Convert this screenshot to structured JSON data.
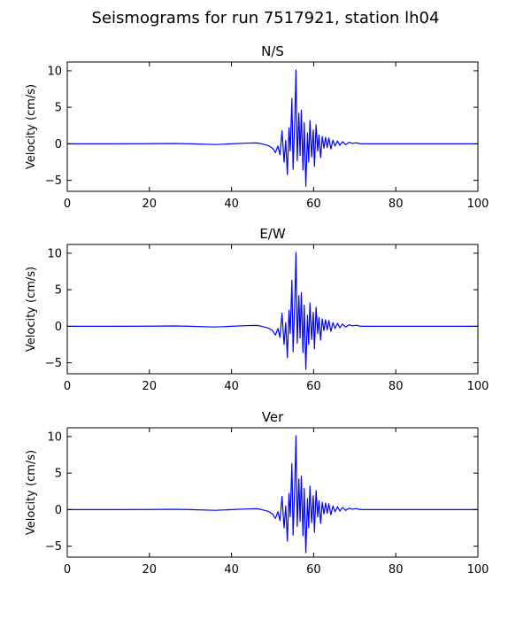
{
  "figure": {
    "title": "Seismograms for run 7517921, station lh04"
  },
  "colors": {
    "trace": "#0000ff",
    "axes": "#000000",
    "background": "#ffffff"
  },
  "chart_data": [
    {
      "type": "line",
      "title": "N/S",
      "xlabel": "",
      "ylabel": "Velocity (cm/s)",
      "xlim": [
        0,
        100
      ],
      "ylim": [
        -6.5,
        11.2
      ],
      "xticks": [
        0,
        20,
        40,
        60,
        80,
        100
      ],
      "yticks": [
        -5,
        0,
        5,
        10
      ],
      "grid": false,
      "series": [
        {
          "x": [
            0,
            10,
            20,
            26,
            30,
            36,
            40,
            44,
            46,
            47,
            48,
            49,
            50,
            50.7,
            51.3,
            51.8,
            52.3,
            52.8,
            53.2,
            53.6,
            54.0,
            54.3,
            54.7,
            55.0,
            55.4,
            55.7,
            56.0,
            56.4,
            56.7,
            57.0,
            57.4,
            57.7,
            58.1,
            58.5,
            58.8,
            59.1,
            59.5,
            59.9,
            60.2,
            60.6,
            61.0,
            61.3,
            61.7,
            62.1,
            62.5,
            62.9,
            63.3,
            63.7,
            64.2,
            64.7,
            65.2,
            65.8,
            66.4,
            67.0,
            67.8,
            68.6,
            69.5,
            70.3,
            71.2,
            72.0,
            74,
            78,
            85,
            95,
            100
          ],
          "y": [
            0,
            0,
            0.02,
            0.05,
            0,
            -0.1,
            0,
            0.1,
            0.12,
            0.05,
            -0.1,
            -0.25,
            -0.6,
            -1.2,
            -0.3,
            -1.5,
            1.8,
            -2.5,
            0.5,
            -4.2,
            2.2,
            -1.0,
            6.2,
            -3.5,
            3.0,
            10.1,
            -2.3,
            4.2,
            -1.6,
            4.6,
            -3.6,
            2.9,
            -5.8,
            1.5,
            -2.5,
            3.2,
            -1.8,
            1.9,
            -3.1,
            2.6,
            -1.0,
            1.2,
            -1.9,
            1.0,
            -0.6,
            0.9,
            -0.5,
            0.8,
            -0.7,
            0.5,
            -0.3,
            0.4,
            -0.2,
            0.3,
            -0.1,
            0.2,
            0.05,
            0.15,
            0.03,
            0,
            0,
            0,
            0,
            0,
            0
          ]
        }
      ]
    },
    {
      "type": "line",
      "title": "E/W",
      "xlabel": "",
      "ylabel": "Velocity (cm/s)",
      "xlim": [
        0,
        100
      ],
      "ylim": [
        -6.5,
        11.2
      ],
      "xticks": [
        0,
        20,
        40,
        60,
        80,
        100
      ],
      "yticks": [
        -5,
        0,
        5,
        10
      ],
      "grid": false,
      "series": [
        {
          "x": [
            0,
            10,
            20,
            26,
            30,
            36,
            40,
            44,
            46,
            47,
            48,
            49,
            50,
            50.7,
            51.3,
            51.8,
            52.3,
            52.8,
            53.2,
            53.6,
            54.0,
            54.3,
            54.7,
            55.0,
            55.4,
            55.7,
            56.0,
            56.4,
            56.7,
            57.0,
            57.4,
            57.7,
            58.1,
            58.5,
            58.8,
            59.1,
            59.5,
            59.9,
            60.2,
            60.6,
            61.0,
            61.3,
            61.7,
            62.1,
            62.5,
            62.9,
            63.3,
            63.7,
            64.2,
            64.7,
            65.2,
            65.8,
            66.4,
            67.0,
            67.8,
            68.6,
            69.5,
            70.3,
            71.2,
            72.0,
            74,
            78,
            85,
            95,
            100
          ],
          "y": [
            0,
            0,
            0.02,
            0.05,
            0,
            -0.1,
            0,
            0.1,
            0.12,
            0.05,
            -0.1,
            -0.25,
            -0.6,
            -1.2,
            -0.3,
            -1.5,
            1.8,
            -2.5,
            0.5,
            -4.3,
            2.2,
            -1.0,
            6.3,
            -3.5,
            3.0,
            10.1,
            -2.3,
            4.2,
            -1.6,
            4.6,
            -3.6,
            2.9,
            -5.9,
            1.5,
            -2.5,
            3.2,
            -1.8,
            1.9,
            -3.1,
            2.6,
            -1.0,
            1.2,
            -1.9,
            1.0,
            -0.6,
            0.9,
            -0.5,
            0.8,
            -0.7,
            0.5,
            -0.3,
            0.4,
            -0.2,
            0.3,
            -0.1,
            0.2,
            0.05,
            0.15,
            0.03,
            0,
            0,
            0,
            0,
            0,
            0
          ]
        }
      ]
    },
    {
      "type": "line",
      "title": "Ver",
      "xlabel": "",
      "ylabel": "Velocity (cm/s)",
      "xlim": [
        0,
        100
      ],
      "ylim": [
        -6.5,
        11.2
      ],
      "xticks": [
        0,
        20,
        40,
        60,
        80,
        100
      ],
      "yticks": [
        -5,
        0,
        5,
        10
      ],
      "grid": false,
      "series": [
        {
          "x": [
            0,
            10,
            20,
            26,
            30,
            36,
            40,
            44,
            46,
            47,
            48,
            49,
            50,
            50.7,
            51.3,
            51.8,
            52.3,
            52.8,
            53.2,
            53.6,
            54.0,
            54.3,
            54.7,
            55.0,
            55.4,
            55.7,
            56.0,
            56.4,
            56.7,
            57.0,
            57.4,
            57.7,
            58.1,
            58.5,
            58.8,
            59.1,
            59.5,
            59.9,
            60.2,
            60.6,
            61.0,
            61.3,
            61.7,
            62.1,
            62.5,
            62.9,
            63.3,
            63.7,
            64.2,
            64.7,
            65.2,
            65.8,
            66.4,
            67.0,
            67.8,
            68.6,
            69.5,
            70.3,
            71.2,
            72.0,
            74,
            78,
            85,
            95,
            100
          ],
          "y": [
            0,
            0,
            0.02,
            0.05,
            0,
            -0.1,
            0,
            0.1,
            0.12,
            0.05,
            -0.1,
            -0.25,
            -0.6,
            -1.2,
            -0.3,
            -1.5,
            1.8,
            -2.5,
            0.5,
            -4.3,
            2.2,
            -1.0,
            6.3,
            -3.5,
            3.0,
            10.1,
            -2.3,
            4.2,
            -1.6,
            4.6,
            -3.6,
            2.9,
            -5.9,
            1.5,
            -2.5,
            3.2,
            -1.8,
            1.9,
            -3.1,
            2.6,
            -1.0,
            1.2,
            -1.9,
            1.0,
            -0.6,
            0.9,
            -0.5,
            0.8,
            -0.7,
            0.5,
            -0.3,
            0.4,
            -0.2,
            0.3,
            -0.1,
            0.2,
            0.05,
            0.15,
            0.03,
            0,
            0,
            0,
            0,
            0,
            0
          ]
        }
      ]
    }
  ]
}
